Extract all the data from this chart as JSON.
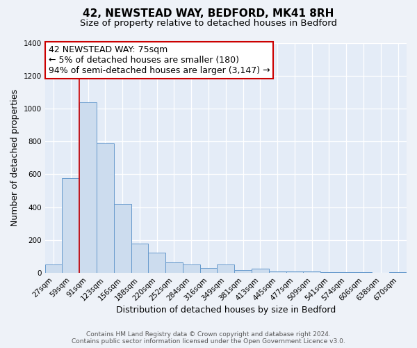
{
  "title": "42, NEWSTEAD WAY, BEDFORD, MK41 8RH",
  "subtitle": "Size of property relative to detached houses in Bedford",
  "xlabel": "Distribution of detached houses by size in Bedford",
  "ylabel": "Number of detached properties",
  "bar_labels": [
    "27sqm",
    "59sqm",
    "91sqm",
    "123sqm",
    "156sqm",
    "188sqm",
    "220sqm",
    "252sqm",
    "284sqm",
    "316sqm",
    "349sqm",
    "381sqm",
    "413sqm",
    "445sqm",
    "477sqm",
    "509sqm",
    "541sqm",
    "574sqm",
    "606sqm",
    "638sqm",
    "670sqm"
  ],
  "bar_values": [
    50,
    575,
    1040,
    790,
    420,
    180,
    125,
    65,
    50,
    30,
    50,
    20,
    25,
    10,
    10,
    10,
    5,
    5,
    5,
    0,
    5
  ],
  "bar_color": "#ccdcee",
  "bar_edge_color": "#6699cc",
  "ylim": [
    0,
    1400
  ],
  "yticks": [
    0,
    200,
    400,
    600,
    800,
    1000,
    1200,
    1400
  ],
  "red_line_x": 1.5,
  "annotation_title": "42 NEWSTEAD WAY: 75sqm",
  "annotation_line1": "← 5% of detached houses are smaller (180)",
  "annotation_line2": "94% of semi-detached houses are larger (3,147) →",
  "annotation_box_color": "#ffffff",
  "annotation_box_edge_color": "#cc0000",
  "footer_line1": "Contains HM Land Registry data © Crown copyright and database right 2024.",
  "footer_line2": "Contains public sector information licensed under the Open Government Licence v3.0.",
  "bg_color": "#eef2f8",
  "plot_bg_color": "#e4ecf7",
  "grid_color": "#ffffff",
  "title_fontsize": 11,
  "subtitle_fontsize": 9.5,
  "axis_label_fontsize": 9,
  "tick_fontsize": 7.5,
  "footer_fontsize": 6.5,
  "annotation_fontsize": 9
}
